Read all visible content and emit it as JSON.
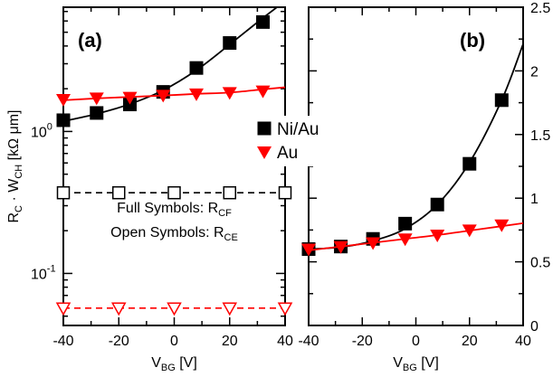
{
  "chart_data": [
    {
      "type": "scatter",
      "panel_label": "(a)",
      "xlabel": "V",
      "xlabel_sub": "BG",
      "xlabel_unit": " [V]",
      "ylabel_parts": [
        "R",
        "C",
        " · W",
        "CH",
        " [kΩ μm]"
      ],
      "x_ticks": [
        "-40",
        "-20",
        "0",
        "20",
        "40"
      ],
      "y_ticks": [
        "10",
        "10"
      ],
      "y_tick_exps": [
        "0",
        "-1"
      ],
      "xlim": [
        -40,
        40
      ],
      "ylim": [
        0.043,
        7.5
      ],
      "yscale": "log",
      "annotations": [
        {
          "main": "Full Symbols: R",
          "sub": "CF"
        },
        {
          "main": "Open Symbols: R",
          "sub": "CE"
        }
      ],
      "series": [
        {
          "symbol": "filled-square",
          "color": "#000000",
          "fit": "curve",
          "x": [
            -40,
            -28,
            -16,
            -4,
            8,
            20,
            32
          ],
          "y": [
            1.2,
            1.35,
            1.55,
            1.9,
            2.8,
            4.2,
            5.9
          ],
          "fit_y": [
            1.18,
            1.33,
            1.56,
            1.95,
            2.7,
            4.1,
            6.3
          ]
        },
        {
          "symbol": "filled-triangle",
          "color": "#ff0000",
          "fit": "linear",
          "x": [
            -40,
            -28,
            -16,
            -4,
            8,
            20,
            32
          ],
          "y": [
            1.68,
            1.72,
            1.74,
            1.8,
            1.84,
            1.88,
            1.93
          ],
          "fit_y": [
            1.66,
            1.71,
            1.75,
            1.79,
            1.84,
            1.88,
            1.98
          ]
        },
        {
          "symbol": "open-square",
          "color": "#000000",
          "fit": "dashed",
          "x": [
            -40,
            -20,
            0,
            20,
            40
          ],
          "y": [
            0.37,
            0.37,
            0.37,
            0.37,
            0.37
          ]
        },
        {
          "symbol": "open-triangle",
          "color": "#ff0000",
          "fit": "dashed",
          "x": [
            -40,
            -20,
            0,
            20,
            40
          ],
          "y": [
            0.057,
            0.057,
            0.057,
            0.057,
            0.057
          ]
        }
      ]
    },
    {
      "type": "scatter",
      "panel_label": "(b)",
      "xlabel": "V",
      "xlabel_sub": "BG",
      "xlabel_unit": " [V]",
      "x_ticks": [
        "-40",
        "-20",
        "0",
        "20",
        "40"
      ],
      "y_ticks": [
        "0",
        "0.5",
        "1",
        "1.5",
        "2",
        "2.5"
      ],
      "xlim": [
        -40,
        40
      ],
      "ylim": [
        0,
        2.5
      ],
      "yscale": "linear",
      "series": [
        {
          "name": "Ni/Au",
          "symbol": "filled-square",
          "color": "#000000",
          "fit": "curve",
          "x": [
            -40,
            -28,
            -16,
            -4,
            8,
            20,
            32
          ],
          "y": [
            0.6,
            0.62,
            0.68,
            0.8,
            0.95,
            1.27,
            1.77
          ],
          "fit_y": [
            0.6,
            0.615,
            0.665,
            0.76,
            0.95,
            1.28,
            1.77
          ]
        },
        {
          "name": "Au",
          "symbol": "filled-triangle",
          "color": "#ff0000",
          "fit": "linear",
          "x": [
            -40,
            -28,
            -16,
            -4,
            8,
            20,
            32
          ],
          "y": [
            0.6,
            0.62,
            0.65,
            0.68,
            0.71,
            0.75,
            0.79
          ],
          "fit_y": [
            0.59,
            0.62,
            0.65,
            0.68,
            0.71,
            0.745,
            0.78
          ]
        }
      ]
    }
  ],
  "legend": [
    {
      "label": "Ni/Au",
      "symbol": "filled-square",
      "color": "#000000"
    },
    {
      "label": "Au",
      "symbol": "filled-triangle",
      "color": "#ff0000"
    }
  ]
}
